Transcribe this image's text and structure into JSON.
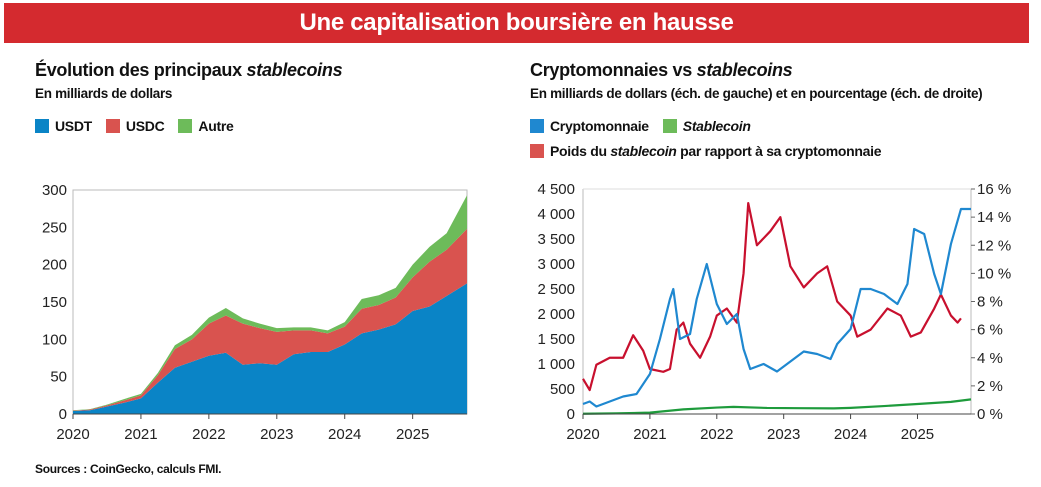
{
  "banner": "Une capitalisation boursière en hausse",
  "source": "Sources : CoinGecko, calculs FMI.",
  "colors": {
    "usdt": "#0a84c6",
    "usdc": "#d9534f",
    "autre": "#6dbb5a",
    "crypto": "#1f88d0",
    "stablecoin": "#1e9b3c",
    "poids": "#c8102e"
  },
  "chart_data": [
    {
      "type": "area",
      "stacked": true,
      "title_main": "Évolution des principaux ",
      "title_em": "stablecoins",
      "subtitle": "En milliards de dollars",
      "legend": [
        "USDT",
        "USDC",
        "Autre"
      ],
      "x_ticks": [
        "2020",
        "2021",
        "2022",
        "2023",
        "2024",
        "2025"
      ],
      "y_ticks": [
        "0",
        "50",
        "100",
        "150",
        "200",
        "250",
        "300"
      ],
      "ylim": [
        0,
        300
      ],
      "x": [
        2020.0,
        2020.25,
        2020.5,
        2020.75,
        2021.0,
        2021.25,
        2021.5,
        2021.75,
        2022.0,
        2022.25,
        2022.5,
        2022.75,
        2023.0,
        2023.25,
        2023.5,
        2023.75,
        2024.0,
        2024.25,
        2024.5,
        2024.75,
        2025.0,
        2025.25,
        2025.5,
        2025.8
      ],
      "series": [
        {
          "name": "USDT",
          "values": [
            4,
            5,
            10,
            15,
            21,
            42,
            62,
            70,
            78,
            82,
            66,
            68,
            66,
            80,
            83,
            83,
            93,
            108,
            113,
            120,
            138,
            144,
            158,
            175
          ]
        },
        {
          "name": "USDC",
          "values": [
            0.5,
            1,
            1.5,
            3,
            4,
            10,
            25,
            30,
            43,
            50,
            55,
            47,
            44,
            32,
            29,
            25,
            24,
            33,
            33,
            36,
            45,
            60,
            62,
            73
          ]
        },
        {
          "name": "Autre",
          "values": [
            0.5,
            0.5,
            1,
            2,
            2,
            3,
            5,
            6,
            8,
            10,
            7,
            6,
            5,
            4,
            4,
            4,
            6,
            13,
            13,
            13,
            17,
            20,
            22,
            45
          ]
        }
      ]
    },
    {
      "type": "line",
      "dual_axis": true,
      "title_main": "Cryptomonnaies vs ",
      "title_em": "stablecoins",
      "subtitle": "En milliards de dollars (éch. de gauche) et en pourcentage (éch. de droite)",
      "legend": [
        {
          "label": "Cryptomonnaie"
        },
        {
          "label": "Stablecoin",
          "italic": true
        },
        {
          "pre": "Poids du ",
          "em": "stablecoin",
          "post": " par rapport à sa cryptomonnaie"
        }
      ],
      "x_ticks": [
        "2020",
        "2021",
        "2022",
        "2023",
        "2024",
        "2025"
      ],
      "y_ticks_left": [
        "0",
        "500",
        "1 000",
        "1 500",
        "2 000",
        "2 500",
        "3 000",
        "3 500",
        "4 000",
        "4 500"
      ],
      "y_ticks_right": [
        "0 %",
        "2 %",
        "4 %",
        "6 %",
        "8 %",
        "10 %",
        "12 %",
        "14 %",
        "16 %"
      ],
      "ylim_left": [
        0,
        4500
      ],
      "ylim_right": [
        0,
        16
      ],
      "crypto": {
        "x": [
          2020.0,
          2020.1,
          2020.2,
          2020.4,
          2020.6,
          2020.8,
          2021.0,
          2021.15,
          2021.3,
          2021.35,
          2021.45,
          2021.6,
          2021.7,
          2021.85,
          2022.0,
          2022.15,
          2022.3,
          2022.4,
          2022.5,
          2022.7,
          2022.9,
          2023.1,
          2023.3,
          2023.5,
          2023.7,
          2023.8,
          2024.0,
          2024.15,
          2024.3,
          2024.5,
          2024.7,
          2024.85,
          2024.95,
          2025.1,
          2025.25,
          2025.35,
          2025.5,
          2025.65,
          2025.8
        ],
        "values": [
          200,
          250,
          150,
          250,
          350,
          400,
          800,
          1500,
          2300,
          2500,
          1500,
          1600,
          2300,
          3000,
          2200,
          1800,
          2000,
          1300,
          900,
          1000,
          850,
          1050,
          1250,
          1200,
          1100,
          1400,
          1700,
          2500,
          2500,
          2400,
          2200,
          2600,
          3700,
          3600,
          2800,
          2400,
          3400,
          4100,
          4100
        ]
      },
      "stablecoin": {
        "x": [
          2020.0,
          2020.5,
          2021.0,
          2021.5,
          2022.0,
          2022.25,
          2022.75,
          2023.25,
          2023.75,
          2024.0,
          2024.5,
          2025.0,
          2025.5,
          2025.8
        ],
        "values": [
          5,
          12,
          27,
          92,
          129,
          142,
          121,
          116,
          112,
          123,
          159,
          200,
          242,
          293
        ]
      },
      "poids": {
        "x": [
          2020.0,
          2020.1,
          2020.2,
          2020.4,
          2020.6,
          2020.75,
          2020.9,
          2021.0,
          2021.2,
          2021.3,
          2021.4,
          2021.5,
          2021.6,
          2021.75,
          2021.9,
          2022.0,
          2022.15,
          2022.3,
          2022.4,
          2022.47,
          2022.6,
          2022.8,
          2022.95,
          2023.1,
          2023.3,
          2023.5,
          2023.65,
          2023.8,
          2024.0,
          2024.1,
          2024.3,
          2024.55,
          2024.75,
          2024.9,
          2025.05,
          2025.25,
          2025.35,
          2025.5,
          2025.6,
          2025.65
        ],
        "values": [
          2.5,
          1.7,
          3.5,
          4,
          4,
          5.6,
          4.5,
          3.2,
          3,
          3.2,
          6,
          6.5,
          5,
          4,
          5.5,
          7,
          7.5,
          6.5,
          10,
          15,
          12,
          13,
          14,
          10.5,
          9,
          10,
          10.5,
          8,
          7,
          5.5,
          6,
          7.5,
          7,
          5.5,
          5.8,
          7.5,
          8.5,
          7,
          6.5,
          6.8
        ]
      }
    }
  ]
}
